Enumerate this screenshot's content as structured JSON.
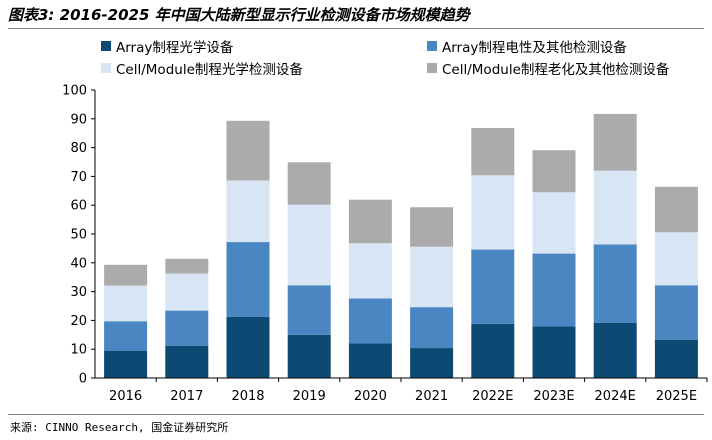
{
  "title": "图表3: 2016-2025 年中国大陆新型显示行业检测设备市场规模趋势",
  "source": "来源: CINNO Research, 国金证券研究所",
  "chart_data": {
    "type": "bar",
    "stacked": true,
    "categories": [
      "2016",
      "2017",
      "2018",
      "2019",
      "2020",
      "2021",
      "2022E",
      "2023E",
      "2024E",
      "2025E"
    ],
    "ylim": [
      0,
      100
    ],
    "yticks": [
      0,
      10,
      20,
      30,
      40,
      50,
      60,
      70,
      80,
      90,
      100
    ],
    "grid": false,
    "legend_position": "top",
    "series": [
      {
        "name": "Array制程光学设备",
        "color": "#0d4a73",
        "values": [
          9.5,
          11.2,
          21.2,
          15.0,
          12.0,
          10.4,
          18.8,
          17.9,
          19.2,
          13.2
        ]
      },
      {
        "name": "Array制程电性及其他检测设备",
        "color": "#4a86c2",
        "values": [
          10.2,
          12.2,
          26.0,
          17.2,
          15.6,
          14.2,
          25.8,
          25.3,
          27.2,
          19.0
        ]
      },
      {
        "name": "Cell/Module制程光学检测设备",
        "color": "#d7e5f4",
        "values": [
          12.4,
          12.9,
          21.4,
          28.0,
          19.2,
          21.0,
          25.8,
          21.3,
          25.6,
          18.4
        ]
      },
      {
        "name": "Cell/Module制程老化及其他检测设备",
        "color": "#ababab",
        "values": [
          7.2,
          5.1,
          20.7,
          14.7,
          15.1,
          13.7,
          16.4,
          14.6,
          19.7,
          15.8
        ]
      }
    ]
  }
}
